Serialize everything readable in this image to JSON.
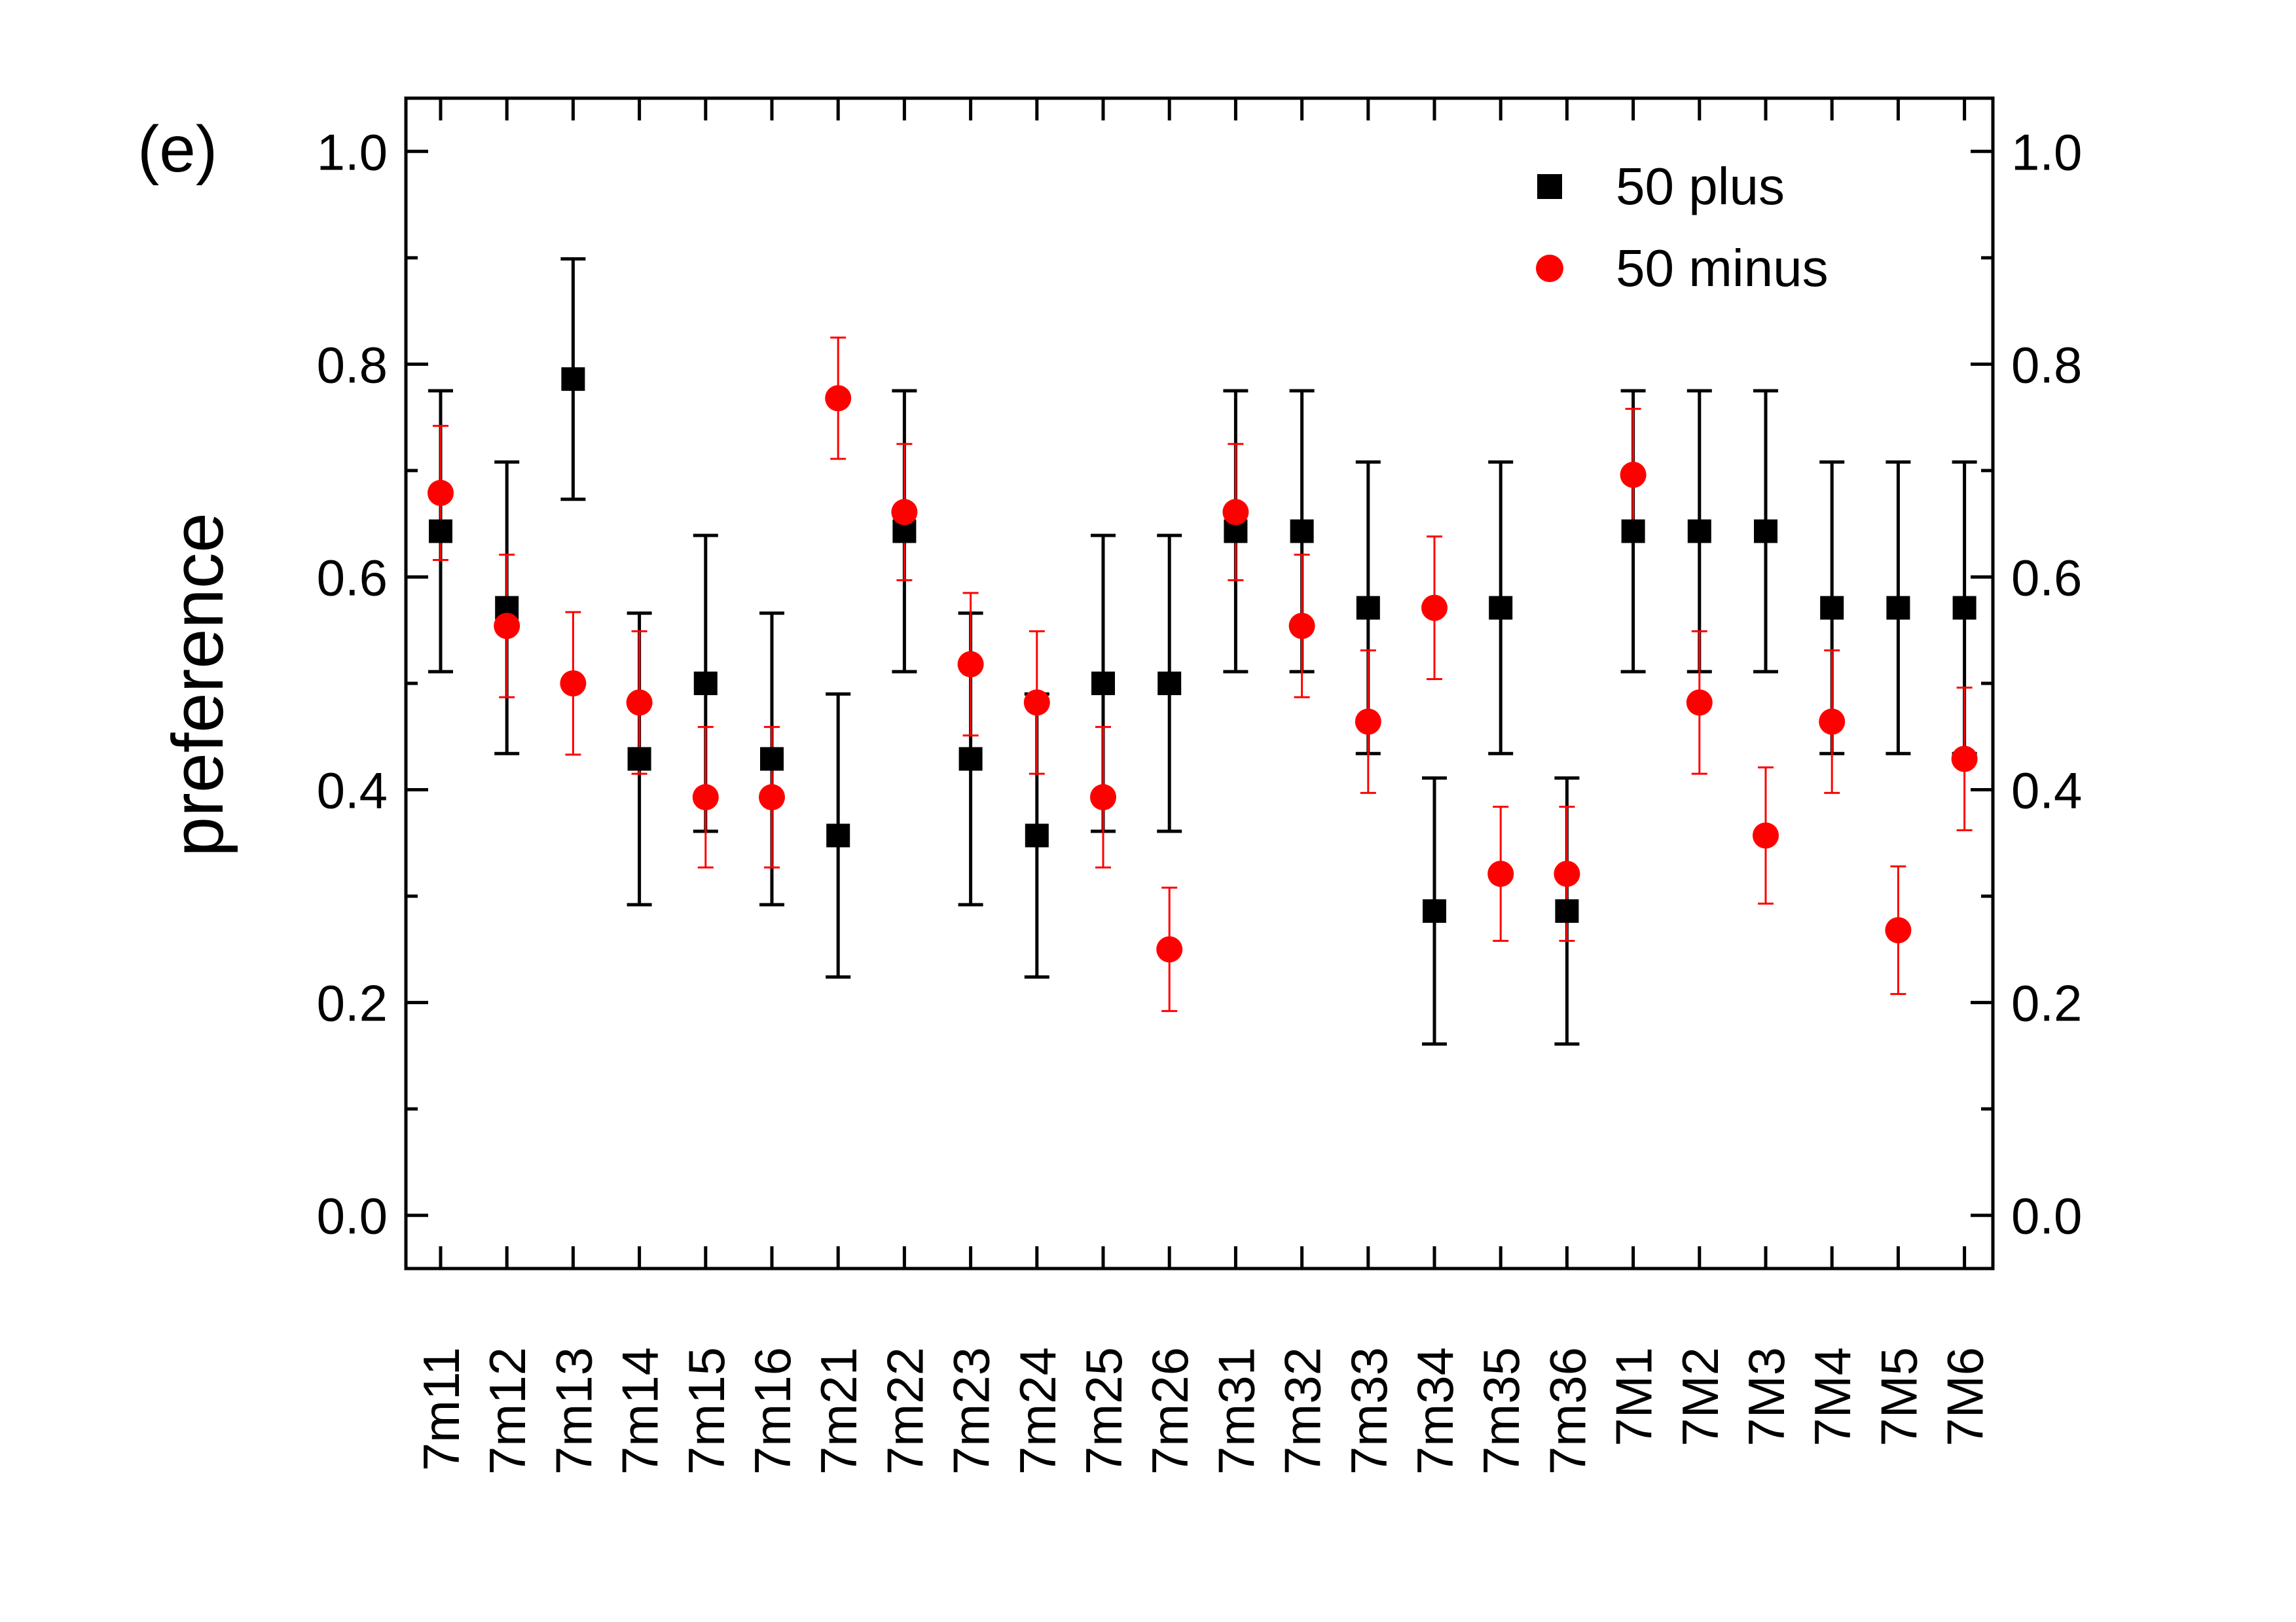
{
  "chart_data": {
    "type": "scatter",
    "panel_label": "(e)",
    "ylabel": "preference",
    "xlabel": "",
    "ylim": [
      -0.05,
      1.05
    ],
    "yticks": [
      0.0,
      0.2,
      0.4,
      0.6,
      0.8,
      1.0
    ],
    "ytick_labels": [
      "0.0",
      "0.2",
      "0.4",
      "0.6",
      "0.8",
      "1.0"
    ],
    "right_axis_mirrored": true,
    "legend_position": "top-right",
    "categories": [
      "7m11",
      "7m12",
      "7m13",
      "7m14",
      "7m15",
      "7m16",
      "7m21",
      "7m22",
      "7m23",
      "7m24",
      "7m25",
      "7m26",
      "7m31",
      "7m32",
      "7m33",
      "7m34",
      "7m35",
      "7m36",
      "7M1",
      "7M2",
      "7M3",
      "7M4",
      "7M5",
      "7M6"
    ],
    "series": [
      {
        "name": "50 plus",
        "marker": "square",
        "color": "#000000",
        "values": [
          0.643,
          0.571,
          0.786,
          0.429,
          0.5,
          0.429,
          0.357,
          0.643,
          0.429,
          0.357,
          0.5,
          0.5,
          0.643,
          0.643,
          0.571,
          0.286,
          0.571,
          0.286,
          0.643,
          0.643,
          0.643,
          0.571,
          0.571,
          0.571
        ],
        "errors": [
          0.132,
          0.137,
          0.113,
          0.137,
          0.139,
          0.137,
          0.133,
          0.132,
          0.137,
          0.133,
          0.139,
          0.139,
          0.132,
          0.132,
          0.137,
          0.125,
          0.137,
          0.125,
          0.132,
          0.132,
          0.132,
          0.137,
          0.137,
          0.137
        ]
      },
      {
        "name": "50 minus",
        "marker": "circle",
        "color": "#ff0000",
        "values": [
          0.679,
          0.554,
          0.5,
          0.482,
          0.393,
          0.393,
          0.768,
          0.661,
          0.518,
          0.482,
          0.393,
          0.25,
          0.661,
          0.554,
          0.464,
          0.571,
          0.321,
          0.321,
          0.696,
          0.482,
          0.357,
          0.464,
          0.268,
          0.429
        ],
        "errors": [
          0.063,
          0.067,
          0.067,
          0.067,
          0.066,
          0.066,
          0.057,
          0.064,
          0.067,
          0.067,
          0.066,
          0.058,
          0.064,
          0.067,
          0.067,
          0.067,
          0.063,
          0.063,
          0.062,
          0.067,
          0.064,
          0.067,
          0.06,
          0.067
        ]
      }
    ]
  }
}
